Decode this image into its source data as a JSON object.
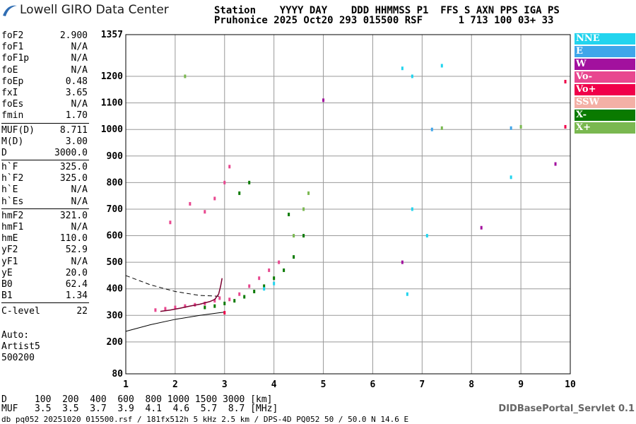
{
  "header": {
    "logo_text": "Lowell GIRO Data Center",
    "line1": "Station    YYYY DAY    DDD HHMMSS P1  FFS S AXN PPS IGA PS",
    "line2": "Pruhonice 2025 Oct20 293 015500 RSF      1 713 100 03+ 33"
  },
  "params": [
    {
      "name": "foF2",
      "value": "2.900"
    },
    {
      "name": "foF1",
      "value": "N/A"
    },
    {
      "name": "foF1p",
      "value": "N/A"
    },
    {
      "name": "foE",
      "value": "N/A"
    },
    {
      "name": "foEp",
      "value": "0.48"
    },
    {
      "name": "fxI",
      "value": "3.65"
    },
    {
      "name": "foEs",
      "value": "N/A"
    },
    {
      "name": "fmin",
      "value": "1.70"
    },
    {
      "name": "MUF(D)",
      "value": "8.711"
    },
    {
      "name": "M(D)",
      "value": "3.00"
    },
    {
      "name": "D",
      "value": "3000.0"
    },
    {
      "name": "h`F",
      "value": "325.0"
    },
    {
      "name": "h`F2",
      "value": "325.0"
    },
    {
      "name": "h`E",
      "value": "N/A"
    },
    {
      "name": "h`Es",
      "value": "N/A"
    },
    {
      "name": "hmF2",
      "value": "321.0"
    },
    {
      "name": "hmF1",
      "value": "N/A"
    },
    {
      "name": "hmE",
      "value": "110.0"
    },
    {
      "name": "yF2",
      "value": "52.9"
    },
    {
      "name": "yF1",
      "value": "N/A"
    },
    {
      "name": "yE",
      "value": "20.0"
    },
    {
      "name": "B0",
      "value": "62.4"
    },
    {
      "name": "B1",
      "value": "1.34"
    },
    {
      "name": "C-level",
      "value": "22"
    }
  ],
  "auto": {
    "label": "Auto:",
    "line2": "Artist5",
    "line3": "500200"
  },
  "muf_table": {
    "d_line": "D     100  200  400  600  800 1000 1500 3000 [km]",
    "muf_line": "MUF   3.5  3.5  3.7  3.9  4.1  4.6  5.7  8.7 [MHz]"
  },
  "servlet": "DIDBasePortal_Servlet 0.1",
  "footer": "db pq052 20251020 015500.rsf / 181fx512h 5 kHz 2.5 km / DPS-4D PQ052 50 / 50.0 N 14.6 E",
  "legend": [
    {
      "label": "NNE",
      "color": "#22d4ee"
    },
    {
      "label": "E",
      "color": "#3fa6ea"
    },
    {
      "label": "W",
      "color": "#a2119e"
    },
    {
      "label": "Vo-",
      "color": "#e8478f"
    },
    {
      "label": "Vo+",
      "color": "#f0004a"
    },
    {
      "label": "SSW",
      "color": "#f4b0a6"
    },
    {
      "label": "X-",
      "color": "#0a7a00"
    },
    {
      "label": "X+",
      "color": "#7ab850"
    }
  ],
  "chart_data": {
    "type": "scatter",
    "title": "",
    "xlabel": "",
    "ylabel": "",
    "xlim": [
      1,
      10
    ],
    "ylim": [
      80,
      1357
    ],
    "x_ticks": [
      1,
      2,
      3,
      4,
      5,
      6,
      7,
      8,
      9,
      10
    ],
    "y_ticks": [
      80,
      200,
      300,
      400,
      500,
      600,
      700,
      800,
      900,
      1000,
      1100,
      1200,
      1357
    ],
    "grid": true,
    "series": [
      {
        "name": "Vo-",
        "color": "#e8478f",
        "points": [
          [
            1.6,
            320
          ],
          [
            1.8,
            325
          ],
          [
            2.0,
            330
          ],
          [
            2.2,
            335
          ],
          [
            2.4,
            340
          ],
          [
            2.6,
            345
          ],
          [
            2.8,
            355
          ],
          [
            2.9,
            365
          ],
          [
            3.1,
            360
          ],
          [
            3.3,
            380
          ],
          [
            3.5,
            410
          ],
          [
            3.7,
            440
          ],
          [
            3.9,
            470
          ],
          [
            4.1,
            500
          ],
          [
            2.6,
            690
          ],
          [
            2.8,
            740
          ],
          [
            3.0,
            800
          ],
          [
            3.1,
            860
          ],
          [
            1.9,
            650
          ],
          [
            2.3,
            720
          ]
        ]
      },
      {
        "name": "X-",
        "color": "#0a7a00",
        "points": [
          [
            2.6,
            330
          ],
          [
            2.8,
            335
          ],
          [
            3.0,
            345
          ],
          [
            3.2,
            355
          ],
          [
            3.4,
            370
          ],
          [
            3.6,
            390
          ],
          [
            3.8,
            410
          ],
          [
            4.0,
            440
          ],
          [
            4.2,
            470
          ],
          [
            4.4,
            520
          ],
          [
            4.6,
            600
          ],
          [
            3.3,
            760
          ],
          [
            3.5,
            800
          ],
          [
            4.3,
            680
          ]
        ]
      },
      {
        "name": "NNE",
        "color": "#22d4ee",
        "points": [
          [
            3.8,
            400
          ],
          [
            4.0,
            420
          ],
          [
            6.7,
            380
          ],
          [
            6.8,
            700
          ],
          [
            6.8,
            1200
          ],
          [
            7.1,
            600
          ],
          [
            7.4,
            1240
          ],
          [
            8.8,
            820
          ],
          [
            6.6,
            1230
          ]
        ]
      },
      {
        "name": "X+",
        "color": "#7ab850",
        "points": [
          [
            4.4,
            600
          ],
          [
            4.6,
            700
          ],
          [
            4.7,
            760
          ],
          [
            2.2,
            1200
          ],
          [
            7.4,
            1005
          ],
          [
            9.0,
            1010
          ],
          [
            9.9,
            1180
          ]
        ]
      },
      {
        "name": "W",
        "color": "#a2119e",
        "points": [
          [
            6.6,
            500
          ],
          [
            8.2,
            630
          ],
          [
            9.7,
            870
          ],
          [
            5.0,
            1110
          ]
        ]
      },
      {
        "name": "Vo+",
        "color": "#f0004a",
        "points": [
          [
            9.9,
            1180
          ],
          [
            9.9,
            1010
          ],
          [
            3.0,
            310
          ]
        ]
      },
      {
        "name": "E",
        "color": "#3fa6ea",
        "points": [
          [
            8.8,
            1005
          ],
          [
            7.2,
            1000
          ]
        ]
      }
    ],
    "trace": [
      [
        1.7,
        315
      ],
      [
        1.9,
        320
      ],
      [
        2.1,
        327
      ],
      [
        2.3,
        335
      ],
      [
        2.5,
        342
      ],
      [
        2.7,
        352
      ],
      [
        2.8,
        360
      ],
      [
        2.88,
        380
      ],
      [
        2.92,
        410
      ],
      [
        2.95,
        440
      ]
    ],
    "profile_upper": [
      [
        1.0,
        450
      ],
      [
        1.5,
        415
      ],
      [
        2.0,
        390
      ],
      [
        2.5,
        375
      ],
      [
        2.9,
        372
      ]
    ],
    "profile_lower": [
      [
        1.0,
        240
      ],
      [
        1.5,
        265
      ],
      [
        2.0,
        285
      ],
      [
        2.5,
        300
      ],
      [
        2.9,
        310
      ],
      [
        3.0,
        312
      ]
    ]
  }
}
